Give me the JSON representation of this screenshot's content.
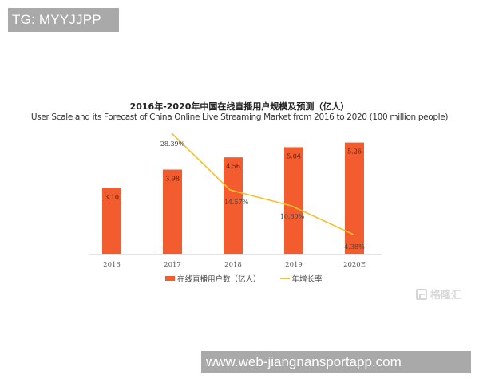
{
  "watermarks": {
    "top_label": "TG: MYYJJPP",
    "bottom_label": "www.web-jiangnansportapp.com"
  },
  "logo": {
    "text": "格隆汇",
    "icon": "gelonghui-g-icon"
  },
  "colors": {
    "bar": "#f25c2e",
    "line": "#f6c02a",
    "axis": "#e3e3e3"
  },
  "chart_data": {
    "type": "bar",
    "title": "2016年-2020年中国在线直播用户规模及预测（亿人）",
    "subtitle": "User Scale and its Forecast of China Online Live Streaming Market from 2016 to 2020 (100 million people)",
    "xlabel": "",
    "ylabel": "",
    "categories": [
      "2016",
      "2017",
      "2018",
      "2019",
      "2020E"
    ],
    "series": [
      {
        "name": "在线直播用户数（亿人）",
        "type": "bar",
        "values": [
          3.1,
          3.98,
          4.56,
          5.04,
          5.26
        ],
        "labels": [
          "3.10",
          "3.98",
          "4.56",
          "5.04",
          "5.26"
        ]
      },
      {
        "name": "年增长率",
        "type": "line",
        "values": [
          null,
          28.39,
          14.57,
          10.6,
          4.38
        ],
        "labels": [
          "",
          "28.39%",
          "14.57%",
          "10.60%",
          "4.38%"
        ]
      }
    ],
    "grid": false,
    "legend_position": "bottom"
  },
  "legend": {
    "bar_label": "在线直播用户数（亿人）",
    "line_label": "年增长率"
  }
}
